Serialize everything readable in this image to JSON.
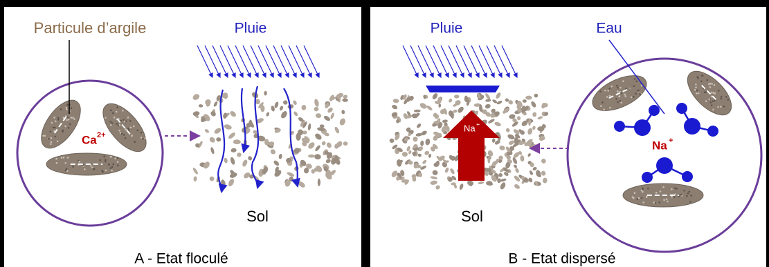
{
  "panel_a": {
    "particle_label": "Particule d’argile",
    "rain_label": "Pluie",
    "ion": "Ca",
    "ion_charge": "2+",
    "soil_label": "Sol",
    "caption": "A - Etat floculé"
  },
  "panel_b": {
    "rain_label": "Pluie",
    "water_label": "Eau",
    "arrow_ion": "Na",
    "arrow_ion_charge": "+",
    "ion": "Na",
    "ion_charge": "+",
    "soil_label": "Sol",
    "caption": "B - Etat dispersé"
  }
}
